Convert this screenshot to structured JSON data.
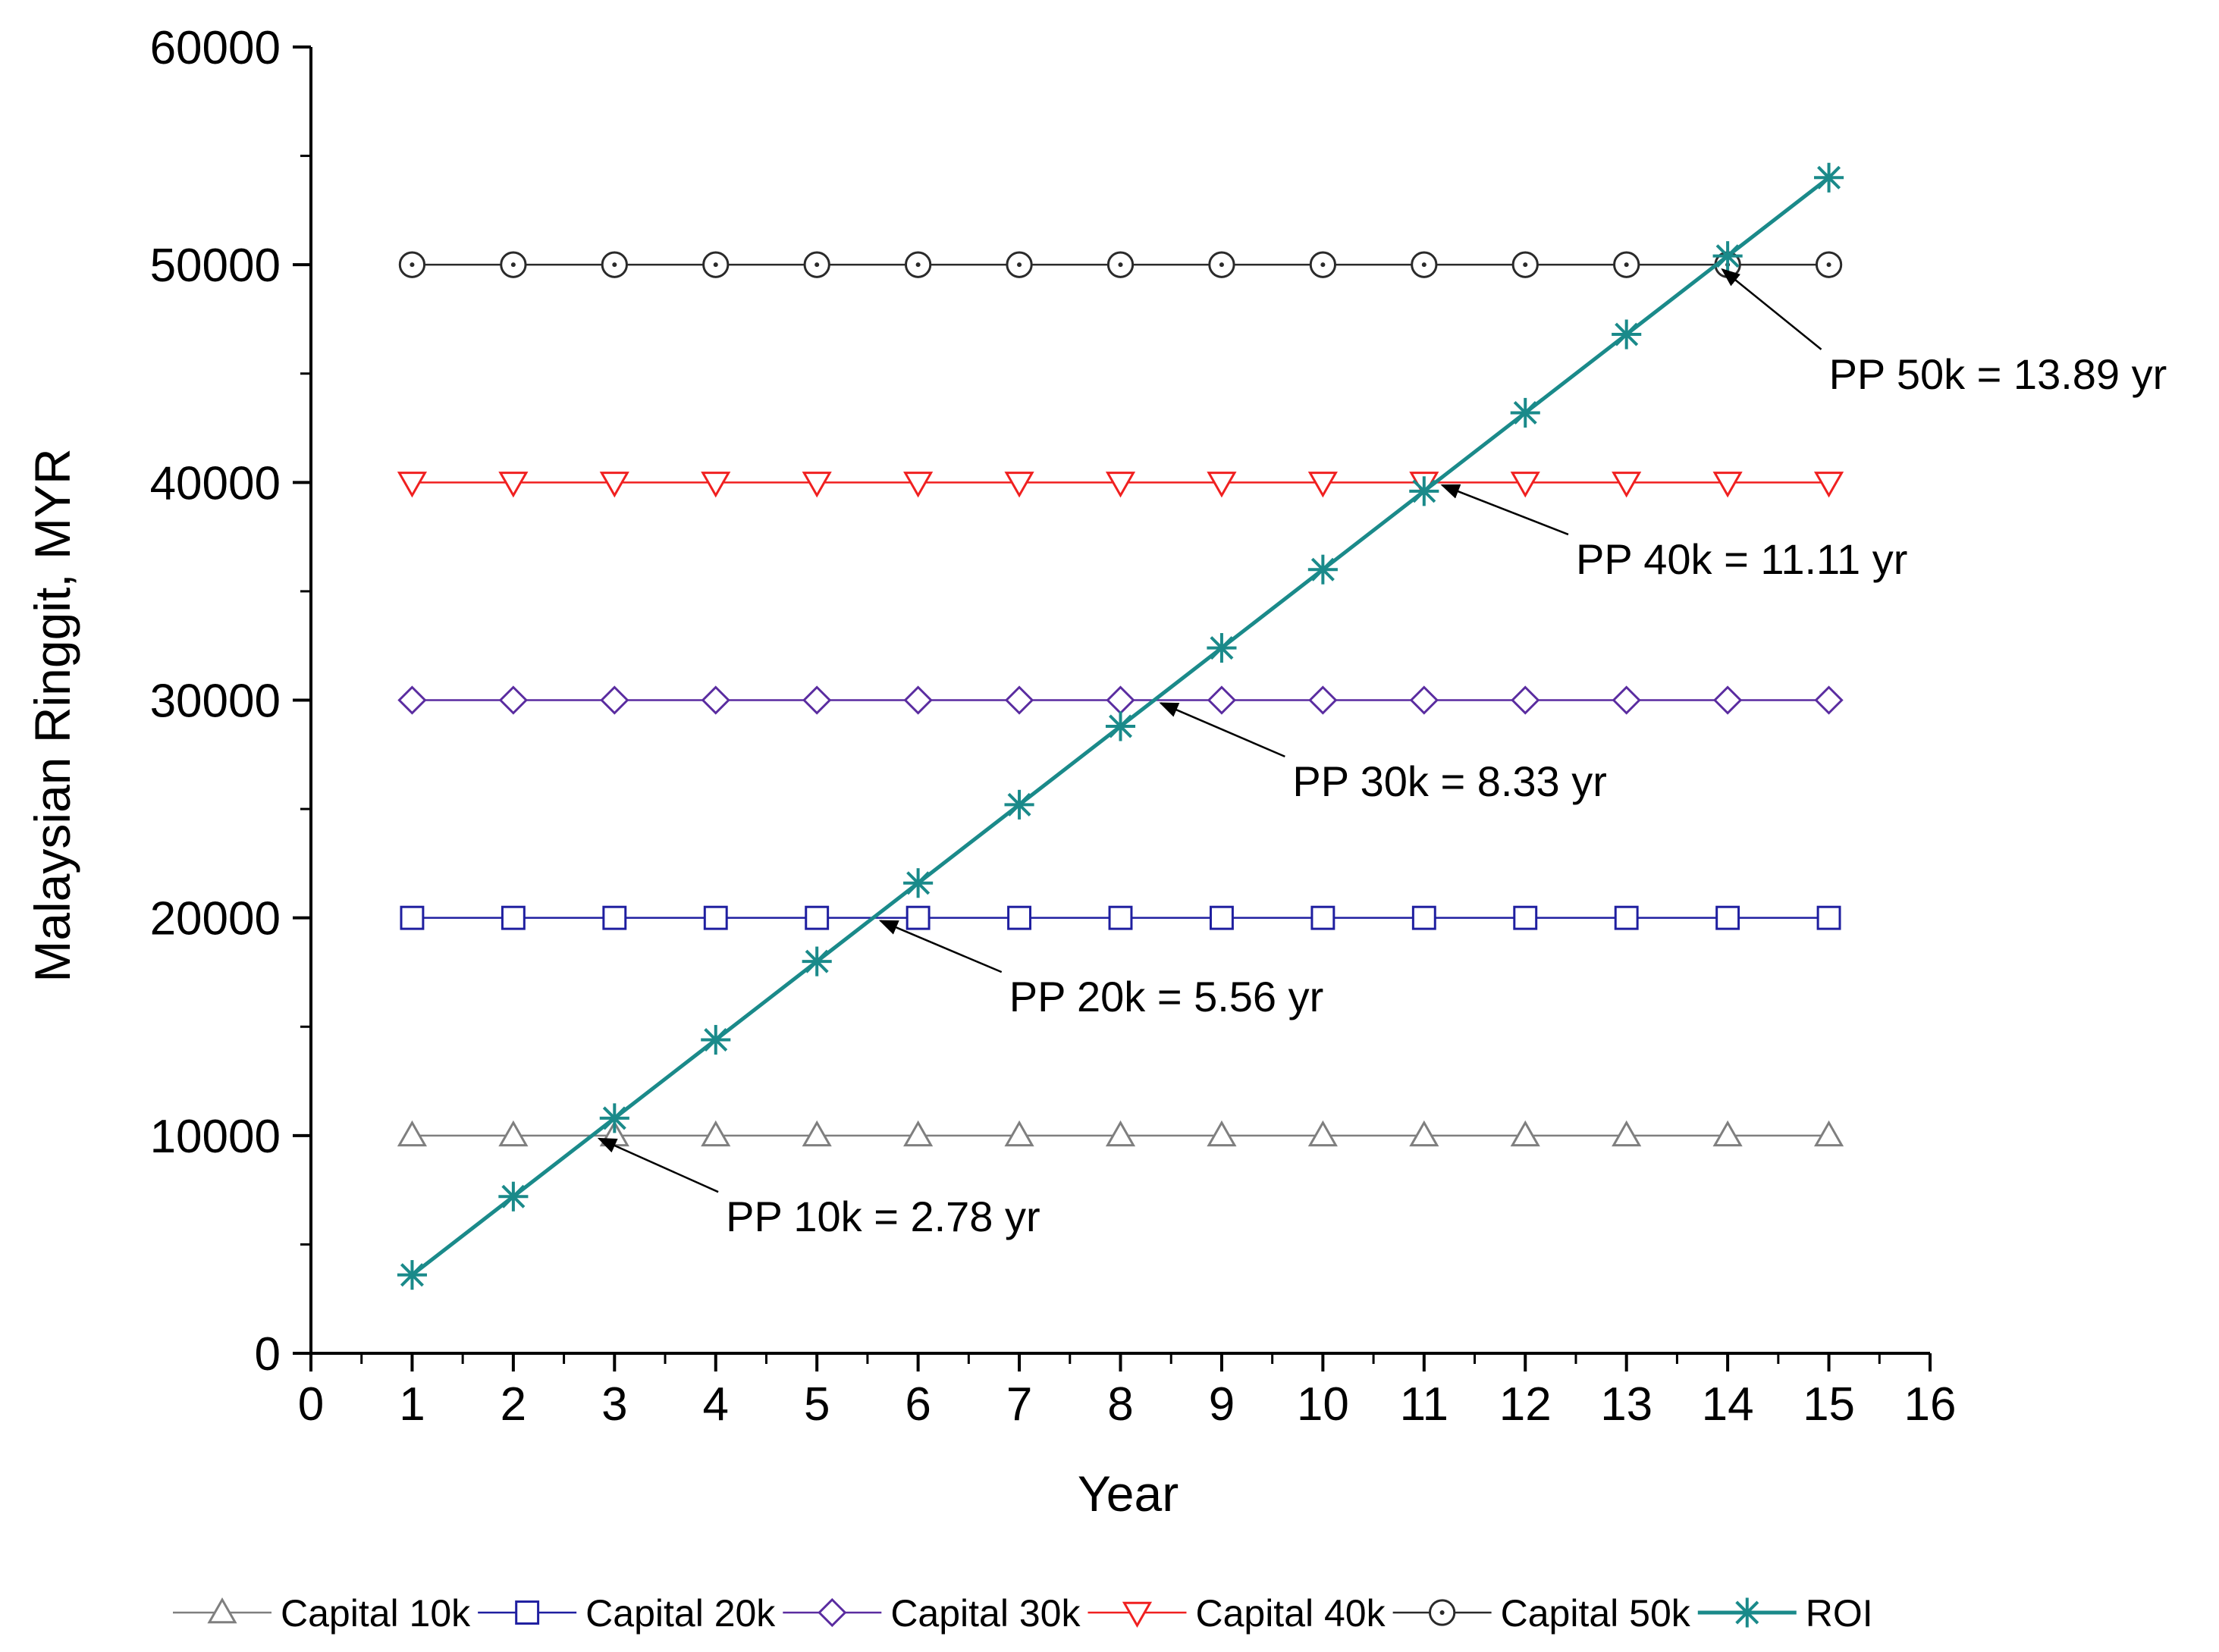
{
  "chart_data": {
    "type": "line",
    "title": "",
    "xlabel": "Year",
    "ylabel": "Malaysian Ringgit, MYR",
    "xlim": [
      0,
      16
    ],
    "ylim": [
      0,
      60000
    ],
    "x_ticks": [
      0,
      1,
      2,
      3,
      4,
      5,
      6,
      7,
      8,
      9,
      10,
      11,
      12,
      13,
      14,
      15,
      16
    ],
    "y_ticks": [
      0,
      10000,
      20000,
      30000,
      40000,
      50000,
      60000
    ],
    "grid": false,
    "legend_position": "bottom",
    "x": [
      1,
      2,
      3,
      4,
      5,
      6,
      7,
      8,
      9,
      10,
      11,
      12,
      13,
      14,
      15
    ],
    "series": [
      {
        "name": "Capital 10k",
        "marker": "triangle-up",
        "color": "#7f7f7f",
        "values": [
          10000,
          10000,
          10000,
          10000,
          10000,
          10000,
          10000,
          10000,
          10000,
          10000,
          10000,
          10000,
          10000,
          10000,
          10000
        ]
      },
      {
        "name": "Capital 20k",
        "marker": "square",
        "color": "#1f1fa0",
        "values": [
          20000,
          20000,
          20000,
          20000,
          20000,
          20000,
          20000,
          20000,
          20000,
          20000,
          20000,
          20000,
          20000,
          20000,
          20000
        ]
      },
      {
        "name": "Capital 30k",
        "marker": "diamond",
        "color": "#5a2ca0",
        "values": [
          30000,
          30000,
          30000,
          30000,
          30000,
          30000,
          30000,
          30000,
          30000,
          30000,
          30000,
          30000,
          30000,
          30000,
          30000
        ]
      },
      {
        "name": "Capital 40k",
        "marker": "triangle-down",
        "color": "#f02020",
        "values": [
          40000,
          40000,
          40000,
          40000,
          40000,
          40000,
          40000,
          40000,
          40000,
          40000,
          40000,
          40000,
          40000,
          40000,
          40000
        ]
      },
      {
        "name": "Capital 50k",
        "marker": "circle",
        "color": "#2a2a2a",
        "values": [
          50000,
          50000,
          50000,
          50000,
          50000,
          50000,
          50000,
          50000,
          50000,
          50000,
          50000,
          50000,
          50000,
          50000,
          50000
        ]
      },
      {
        "name": "ROI",
        "marker": "asterisk",
        "color": "#1a8a8a",
        "values": [
          3600,
          7200,
          10800,
          14400,
          18000,
          21600,
          25200,
          28800,
          32400,
          36000,
          39600,
          43200,
          46800,
          50400,
          54000
        ]
      }
    ],
    "annotations": [
      {
        "text": "PP 10k = 2.78 yr",
        "point": [
          2.78,
          10000
        ],
        "label_at": [
          4.1,
          5600
        ]
      },
      {
        "text": "PP 20k = 5.56 yr",
        "point": [
          5.56,
          20000
        ],
        "label_at": [
          6.9,
          15700
        ]
      },
      {
        "text": "PP 30k = 8.33 yr",
        "point": [
          8.33,
          30000
        ],
        "label_at": [
          9.7,
          25600
        ]
      },
      {
        "text": "PP 40k = 11.11 yr",
        "point": [
          11.11,
          40000
        ],
        "label_at": [
          12.5,
          35800
        ]
      },
      {
        "text": "PP 50k = 13.89 yr",
        "point": [
          13.89,
          50000
        ],
        "label_at": [
          15.0,
          44300
        ]
      }
    ]
  }
}
